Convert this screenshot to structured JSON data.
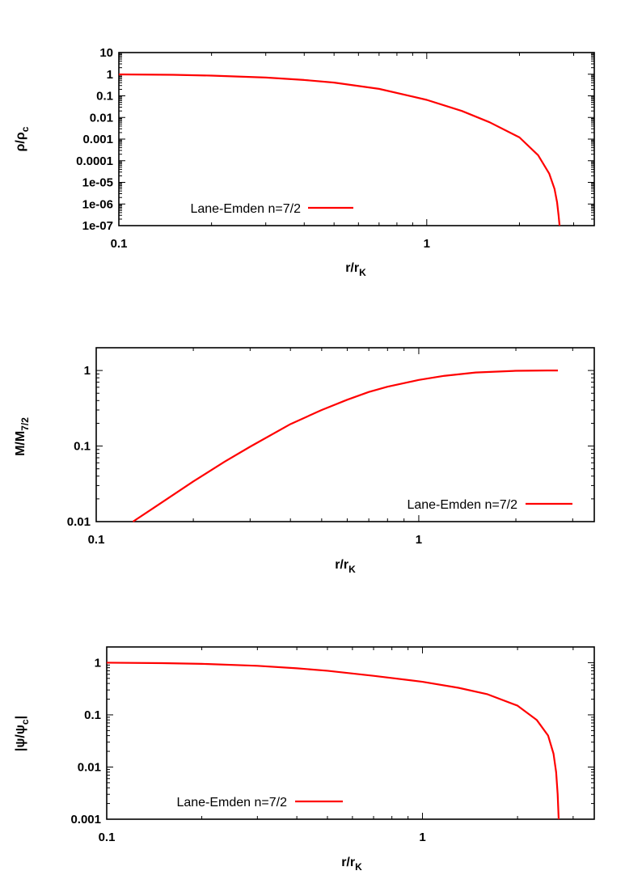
{
  "chart_data": [
    {
      "type": "line",
      "xscale": "log",
      "yscale": "log",
      "xlim": [
        0.1,
        3.5
      ],
      "ylim": [
        1e-07,
        10
      ],
      "xticks": [
        {
          "v": 0.1,
          "label": "0.1"
        },
        {
          "v": 1,
          "label": "1"
        }
      ],
      "yticks": [
        {
          "v": 10,
          "label": "10"
        },
        {
          "v": 1,
          "label": "1"
        },
        {
          "v": 0.1,
          "label": "0.1"
        },
        {
          "v": 0.01,
          "label": "0.01"
        },
        {
          "v": 0.001,
          "label": "0.001"
        },
        {
          "v": 0.0001,
          "label": "0.0001"
        },
        {
          "v": 1e-05,
          "label": "1e-05"
        },
        {
          "v": 1e-06,
          "label": "1e-06"
        },
        {
          "v": 1e-07,
          "label": "1e-07"
        }
      ],
      "xlabel": {
        "main": "r/r",
        "sub": "K"
      },
      "ylabel": {
        "main": "ρ/ρ",
        "sub": "c"
      },
      "legend": {
        "label": "Lane-Emden n=7/2",
        "position": "bottom-left"
      },
      "series": [
        {
          "name": "Lane-Emden n=7/2",
          "color": "#ff0000",
          "x": [
            0.1,
            0.15,
            0.2,
            0.3,
            0.4,
            0.5,
            0.7,
            1.0,
            1.3,
            1.6,
            2.0,
            2.3,
            2.5,
            2.6,
            2.65,
            2.68,
            2.7
          ],
          "y": [
            0.98,
            0.94,
            0.86,
            0.7,
            0.54,
            0.41,
            0.21,
            0.065,
            0.02,
            0.006,
            0.0012,
            0.00018,
            2.5e-05,
            5e-06,
            1.2e-06,
            3e-07,
            1e-07
          ]
        }
      ]
    },
    {
      "type": "line",
      "xscale": "log",
      "yscale": "log",
      "xlim": [
        0.1,
        3.5
      ],
      "ylim": [
        0.01,
        2
      ],
      "xticks": [
        {
          "v": 0.1,
          "label": "0.1"
        },
        {
          "v": 1,
          "label": "1"
        }
      ],
      "yticks": [
        {
          "v": 1,
          "label": "1"
        },
        {
          "v": 0.1,
          "label": "0.1"
        },
        {
          "v": 0.01,
          "label": "0.01"
        }
      ],
      "xlabel": {
        "main": "r/r",
        "sub": "K"
      },
      "ylabel": {
        "main": "M/M",
        "sub": "7/2"
      },
      "legend": {
        "label": "Lane-Emden n=7/2",
        "position": "bottom-right"
      },
      "series": [
        {
          "name": "Lane-Emden n=7/2",
          "color": "#ff0000",
          "x": [
            0.13,
            0.15,
            0.2,
            0.25,
            0.3,
            0.4,
            0.5,
            0.6,
            0.7,
            0.8,
            1.0,
            1.2,
            1.5,
            2.0,
            2.5,
            2.7
          ],
          "y": [
            0.01,
            0.015,
            0.034,
            0.062,
            0.098,
            0.195,
            0.3,
            0.41,
            0.52,
            0.61,
            0.75,
            0.85,
            0.94,
            0.99,
            1.0,
            1.0
          ]
        }
      ]
    },
    {
      "type": "line",
      "xscale": "log",
      "yscale": "log",
      "xlim": [
        0.1,
        3.5
      ],
      "ylim": [
        0.001,
        2
      ],
      "xticks": [
        {
          "v": 0.1,
          "label": "0.1"
        },
        {
          "v": 1,
          "label": "1"
        }
      ],
      "yticks": [
        {
          "v": 1,
          "label": "1"
        },
        {
          "v": 0.1,
          "label": "0.1"
        },
        {
          "v": 0.01,
          "label": "0.01"
        },
        {
          "v": 0.001,
          "label": "0.001"
        }
      ],
      "xlabel": {
        "main": "r/r",
        "sub": "K"
      },
      "ylabel": {
        "main": "|ψ/ψ",
        "sub": "c",
        "tail": "|"
      },
      "legend": {
        "label": "Lane-Emden n=7/2",
        "position": "bottom-left"
      },
      "series": [
        {
          "name": "Lane-Emden n=7/2",
          "color": "#ff0000",
          "x": [
            0.1,
            0.15,
            0.2,
            0.3,
            0.4,
            0.5,
            0.7,
            1.0,
            1.3,
            1.6,
            2.0,
            2.3,
            2.5,
            2.6,
            2.65,
            2.68,
            2.7
          ],
          "y": [
            1.0,
            0.98,
            0.95,
            0.87,
            0.78,
            0.7,
            0.56,
            0.43,
            0.33,
            0.25,
            0.15,
            0.08,
            0.04,
            0.018,
            0.008,
            0.003,
            0.001
          ]
        }
      ]
    }
  ]
}
